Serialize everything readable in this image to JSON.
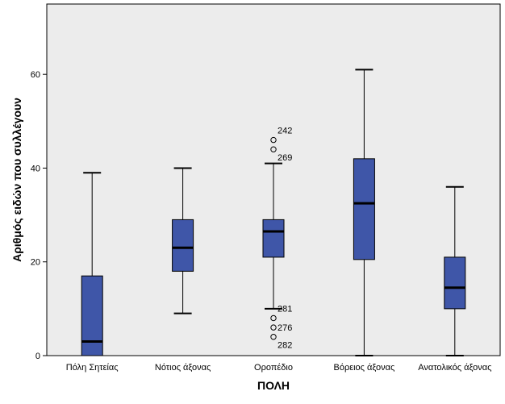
{
  "chart_data": {
    "type": "boxplot",
    "xlabel": "ΠΟΛΗ",
    "ylabel": "Αριθμός ειδών που συλλέγουν",
    "ylim": [
      0,
      75
    ],
    "yticks": [
      0,
      20,
      40,
      60
    ],
    "grid": false,
    "colors": {
      "box": "#3f56a8",
      "plot_bg": "#ececec",
      "line": "#000000"
    },
    "categories": [
      "Πόλη Σητείας",
      "Νότιος άξονας",
      "Οροπέδιο",
      "Βόρειος άξονας",
      "Ανατολικός άξονας"
    ],
    "boxes": [
      {
        "category": "Πόλη Σητείας",
        "whisker_low": 0,
        "q1": 0,
        "median": 3,
        "q3": 17,
        "whisker_high": 39,
        "outliers": []
      },
      {
        "category": "Νότιος άξονας",
        "whisker_low": 9,
        "q1": 18,
        "median": 23,
        "q3": 29,
        "whisker_high": 40,
        "outliers": []
      },
      {
        "category": "Οροπέδιο",
        "whisker_low": 10,
        "q1": 21,
        "median": 26.5,
        "q3": 29,
        "whisker_high": 41,
        "outliers": [
          {
            "value": 46,
            "label": "242"
          },
          {
            "value": 44,
            "label": "269"
          },
          {
            "value": 6,
            "label": "276"
          },
          {
            "value": 4,
            "label": "282"
          },
          {
            "value": 8,
            "label": "281"
          }
        ]
      },
      {
        "category": "Βόρειος άξονας",
        "whisker_low": 0,
        "q1": 20.5,
        "median": 32.5,
        "q3": 42,
        "whisker_high": 61,
        "outliers": []
      },
      {
        "category": "Ανατολικός άξονας",
        "whisker_low": 0,
        "q1": 10,
        "median": 14.5,
        "q3": 21,
        "whisker_high": 36,
        "outliers": []
      }
    ]
  }
}
